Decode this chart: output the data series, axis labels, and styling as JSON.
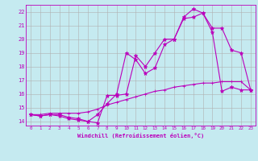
{
  "xlabel": "Windchill (Refroidissement éolien,°C)",
  "background_color": "#c5eaf0",
  "grid_color": "#b0b0b0",
  "line_color": "#bb00bb",
  "xlim": [
    -0.5,
    23.5
  ],
  "ylim": [
    13.7,
    22.5
  ],
  "xticks": [
    0,
    1,
    2,
    3,
    4,
    5,
    6,
    7,
    8,
    9,
    10,
    11,
    12,
    13,
    14,
    15,
    16,
    17,
    18,
    19,
    20,
    21,
    22,
    23
  ],
  "yticks": [
    14,
    15,
    16,
    17,
    18,
    19,
    20,
    21,
    22
  ],
  "line1_x": [
    0,
    1,
    2,
    3,
    4,
    5,
    6,
    7,
    8,
    9,
    10,
    11,
    12,
    13,
    14,
    15,
    16,
    17,
    18,
    19,
    20,
    21,
    22,
    23
  ],
  "line1_y": [
    14.5,
    14.4,
    14.5,
    14.5,
    14.3,
    14.2,
    14.0,
    13.9,
    15.9,
    15.9,
    16.0,
    18.8,
    18.0,
    19.0,
    20.0,
    20.0,
    21.6,
    22.2,
    21.9,
    20.8,
    20.8,
    19.2,
    19.0,
    16.3
  ],
  "line2_x": [
    0,
    1,
    2,
    3,
    4,
    5,
    6,
    7,
    8,
    9,
    10,
    11,
    12,
    13,
    14,
    15,
    16,
    17,
    18,
    19,
    20,
    21,
    22,
    23
  ],
  "line2_y": [
    14.5,
    14.4,
    14.5,
    14.4,
    14.2,
    14.1,
    14.0,
    14.5,
    15.3,
    16.0,
    19.0,
    18.5,
    17.5,
    17.9,
    19.6,
    20.0,
    21.5,
    21.6,
    21.9,
    20.5,
    16.2,
    16.5,
    16.3,
    16.3
  ],
  "line3_x": [
    0,
    1,
    2,
    3,
    4,
    5,
    6,
    7,
    8,
    9,
    10,
    11,
    12,
    13,
    14,
    15,
    16,
    17,
    18,
    19,
    20,
    21,
    22,
    23
  ],
  "line3_y": [
    14.5,
    14.5,
    14.6,
    14.6,
    14.6,
    14.6,
    14.7,
    14.9,
    15.2,
    15.4,
    15.6,
    15.8,
    16.0,
    16.2,
    16.3,
    16.5,
    16.6,
    16.7,
    16.8,
    16.8,
    16.9,
    16.9,
    16.9,
    16.3
  ]
}
